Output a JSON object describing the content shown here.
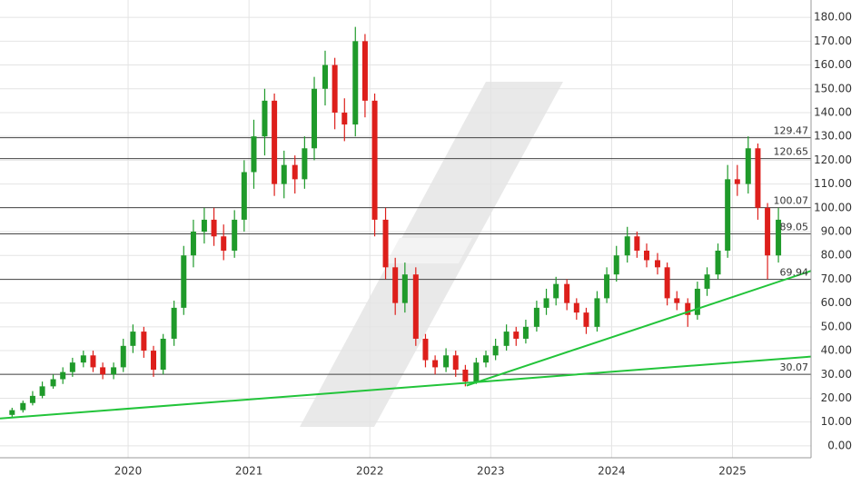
{
  "chart_data": {
    "type": "candlestick",
    "candles": {
      "x": [
        2019.04,
        2019.13,
        2019.21,
        2019.29,
        2019.38,
        2019.46,
        2019.54,
        2019.63,
        2019.71,
        2019.79,
        2019.88,
        2019.96,
        2020.04,
        2020.13,
        2020.21,
        2020.29,
        2020.38,
        2020.46,
        2020.54,
        2020.63,
        2020.71,
        2020.79,
        2020.88,
        2020.96,
        2021.04,
        2021.13,
        2021.21,
        2021.29,
        2021.38,
        2021.46,
        2021.54,
        2021.63,
        2021.71,
        2021.79,
        2021.88,
        2021.96,
        2022.04,
        2022.13,
        2022.21,
        2022.29,
        2022.38,
        2022.46,
        2022.54,
        2022.63,
        2022.71,
        2022.79,
        2022.88,
        2022.96,
        2023.04,
        2023.13,
        2023.21,
        2023.29,
        2023.38,
        2023.46,
        2023.54,
        2023.63,
        2023.71,
        2023.79,
        2023.88,
        2023.96,
        2024.04,
        2024.13,
        2024.21,
        2024.29,
        2024.38,
        2024.46,
        2024.54,
        2024.63,
        2024.71,
        2024.79,
        2024.88,
        2024.96,
        2025.04,
        2025.13,
        2025.21,
        2025.29,
        2025.38
      ],
      "open": [
        13,
        15,
        18,
        21,
        25,
        28,
        31,
        35,
        38,
        33,
        30,
        33,
        42,
        48,
        40,
        32,
        45,
        58,
        80,
        90,
        95,
        88,
        82,
        95,
        115,
        130,
        145,
        110,
        118,
        112,
        125,
        150,
        160,
        140,
        135,
        170,
        145,
        95,
        75,
        60,
        72,
        45,
        36,
        33,
        38,
        32,
        27,
        35,
        38,
        42,
        48,
        45,
        50,
        58,
        62,
        68,
        60,
        56,
        50,
        62,
        72,
        80,
        88,
        82,
        78,
        75,
        62,
        60,
        55,
        66,
        72,
        82,
        112,
        110,
        125,
        100,
        80
      ],
      "high": [
        16,
        19,
        23,
        27,
        30,
        33,
        37,
        40,
        40,
        35,
        35,
        45,
        51,
        50,
        42,
        47,
        61,
        84,
        95,
        100,
        100,
        93,
        99,
        120,
        137,
        150,
        148,
        124,
        122,
        130,
        155,
        166,
        163,
        146,
        176,
        173,
        148,
        100,
        79,
        77,
        75,
        47,
        38,
        41,
        40,
        34,
        37,
        40,
        45,
        51,
        50,
        53,
        61,
        66,
        71,
        70,
        62,
        58,
        65,
        75,
        84,
        92,
        90,
        85,
        81,
        77,
        65,
        62,
        69,
        75,
        85,
        118,
        118,
        130,
        127,
        102,
        100
      ],
      "low": [
        12,
        14,
        17,
        20,
        24,
        26,
        29,
        33,
        31,
        28,
        28,
        31,
        39,
        37,
        29,
        30,
        42,
        55,
        75,
        85,
        84,
        78,
        79,
        90,
        108,
        122,
        105,
        104,
        106,
        108,
        120,
        143,
        133,
        128,
        130,
        138,
        88,
        70,
        55,
        56,
        42,
        33,
        30,
        31,
        29,
        25,
        26,
        33,
        36,
        40,
        42,
        43,
        48,
        55,
        59,
        57,
        53,
        47,
        48,
        60,
        69,
        77,
        79,
        75,
        72,
        59,
        57,
        50,
        53,
        63,
        70,
        79,
        105,
        106,
        95,
        70,
        77
      ],
      "close": [
        15,
        18,
        21,
        25,
        28,
        31,
        35,
        38,
        33,
        30,
        33,
        42,
        48,
        40,
        32,
        45,
        58,
        80,
        90,
        95,
        88,
        82,
        95,
        115,
        130,
        145,
        110,
        118,
        112,
        125,
        150,
        160,
        140,
        135,
        170,
        145,
        95,
        75,
        60,
        72,
        45,
        36,
        33,
        38,
        32,
        27,
        35,
        38,
        42,
        48,
        45,
        50,
        58,
        62,
        68,
        60,
        56,
        50,
        62,
        72,
        80,
        88,
        82,
        78,
        75,
        62,
        60,
        55,
        66,
        72,
        82,
        112,
        110,
        125,
        100,
        80,
        95
      ]
    },
    "up_color": "#1f9a2a",
    "down_color": "#dd1f1b",
    "levels": [
      129.47,
      120.65,
      100.07,
      89.05,
      69.94,
      30.07
    ],
    "trendlines": [
      {
        "x": [
          2018.94,
          2025.65
        ],
        "values": [
          11.5,
          37.5
        ]
      },
      {
        "x": [
          2022.8,
          2025.65
        ],
        "values": [
          25.3,
          73.5
        ]
      }
    ],
    "trend_color": "#22c43a",
    "xlim": [
      2018.94,
      2025.65
    ],
    "xticks": [
      2020,
      2021,
      2022,
      2023,
      2024,
      2025
    ],
    "ylim": [
      -5,
      187.3
    ],
    "yticks": [
      {
        "value": 180,
        "label": "180.00"
      },
      {
        "value": 170,
        "label": "170.00"
      },
      {
        "value": 160,
        "label": "160.00"
      },
      {
        "value": 150,
        "label": "150.00"
      },
      {
        "value": 140,
        "label": "140.00"
      },
      {
        "value": 130,
        "label": "130.00"
      },
      {
        "value": 120,
        "label": "120.00"
      },
      {
        "value": 110,
        "label": "110.00"
      },
      {
        "value": 100,
        "label": "100.00"
      },
      {
        "value": 90,
        "label": "90.00"
      },
      {
        "value": 80,
        "label": "80.00"
      },
      {
        "value": 70,
        "label": "70.00"
      },
      {
        "value": 60,
        "label": "60.00"
      },
      {
        "value": 50,
        "label": "50.00"
      },
      {
        "value": 40,
        "label": "40.00"
      },
      {
        "value": 30,
        "label": "30.00"
      },
      {
        "value": 20,
        "label": "20.00"
      },
      {
        "value": 10,
        "label": "10.00"
      },
      {
        "value": 0,
        "label": "0.00"
      }
    ],
    "grid": true
  }
}
